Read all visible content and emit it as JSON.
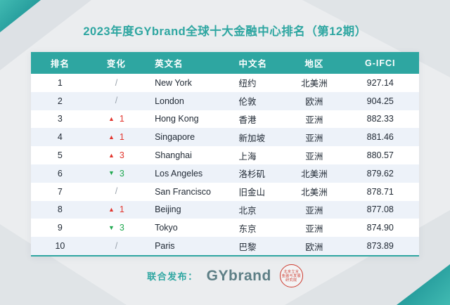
{
  "title": "2023年度GYbrand全球十大金融中心排名（第12期）",
  "table": {
    "headers": [
      "排名",
      "变化",
      "英文名",
      "中文名",
      "地区",
      "G-IFCI"
    ],
    "rows": [
      {
        "rank": "1",
        "change": {
          "dir": "none",
          "value": ""
        },
        "en": "New York",
        "zh": "纽约",
        "region": "北美洲",
        "score": "927.14"
      },
      {
        "rank": "2",
        "change": {
          "dir": "none",
          "value": ""
        },
        "en": "London",
        "zh": "伦敦",
        "region": "欧洲",
        "score": "904.25"
      },
      {
        "rank": "3",
        "change": {
          "dir": "up",
          "value": "1"
        },
        "en": "Hong Kong",
        "zh": "香港",
        "region": "亚洲",
        "score": "882.33"
      },
      {
        "rank": "4",
        "change": {
          "dir": "up",
          "value": "1"
        },
        "en": "Singapore",
        "zh": "新加坡",
        "region": "亚洲",
        "score": "881.46"
      },
      {
        "rank": "5",
        "change": {
          "dir": "up",
          "value": "3"
        },
        "en": "Shanghai",
        "zh": "上海",
        "region": "亚洲",
        "score": "880.57"
      },
      {
        "rank": "6",
        "change": {
          "dir": "down",
          "value": "3"
        },
        "en": "Los Angeles",
        "zh": "洛杉矶",
        "region": "北美洲",
        "score": "879.62"
      },
      {
        "rank": "7",
        "change": {
          "dir": "none",
          "value": ""
        },
        "en": "San Francisco",
        "zh": "旧金山",
        "region": "北美洲",
        "score": "878.71"
      },
      {
        "rank": "8",
        "change": {
          "dir": "up",
          "value": "1"
        },
        "en": "Beijing",
        "zh": "北京",
        "region": "亚洲",
        "score": "877.08"
      },
      {
        "rank": "9",
        "change": {
          "dir": "down",
          "value": "3"
        },
        "en": "Tokyo",
        "zh": "东京",
        "region": "亚洲",
        "score": "874.90"
      },
      {
        "rank": "10",
        "change": {
          "dir": "none",
          "value": ""
        },
        "en": "Paris",
        "zh": "巴黎",
        "region": "欧洲",
        "score": "873.89"
      }
    ]
  },
  "change_glyphs": {
    "up": "▲",
    "down": "▼",
    "none": "/"
  },
  "footer": {
    "label": "联合发布：",
    "brand": "GYbrand",
    "seal_lines": [
      "北京立言",
      "金融与发展",
      "研究院"
    ]
  },
  "colors": {
    "accent": "#2EA6A1",
    "up": "#E2342C",
    "down": "#1FA84F",
    "neutral": "#98A1AB",
    "stripe": "#EDF2F9",
    "text": "#222B36",
    "seal": "#CE3A2E",
    "brand": "#5E7F86",
    "bg": "#EBEDEF"
  },
  "chart_data": {
    "type": "table",
    "title": "2023年度GYbrand全球十大金融中心排名（第12期）",
    "columns": [
      "排名",
      "变化",
      "英文名",
      "中文名",
      "地区",
      "G-IFCI"
    ],
    "rows": [
      [
        "1",
        "/",
        "New York",
        "纽约",
        "北美洲",
        927.14
      ],
      [
        "2",
        "/",
        "London",
        "伦敦",
        "欧洲",
        904.25
      ],
      [
        "3",
        "▲1",
        "Hong Kong",
        "香港",
        "亚洲",
        882.33
      ],
      [
        "4",
        "▲1",
        "Singapore",
        "新加坡",
        "亚洲",
        881.46
      ],
      [
        "5",
        "▲3",
        "Shanghai",
        "上海",
        "亚洲",
        880.57
      ],
      [
        "6",
        "▼3",
        "Los Angeles",
        "洛杉矶",
        "北美洲",
        879.62
      ],
      [
        "7",
        "/",
        "San Francisco",
        "旧金山",
        "北美洲",
        878.71
      ],
      [
        "8",
        "▲1",
        "Beijing",
        "北京",
        "亚洲",
        877.08
      ],
      [
        "9",
        "▼3",
        "Tokyo",
        "东京",
        "亚洲",
        874.9
      ],
      [
        "10",
        "/",
        "Paris",
        "巴黎",
        "欧洲",
        873.89
      ]
    ],
    "legend_position": "none",
    "grid": false
  }
}
